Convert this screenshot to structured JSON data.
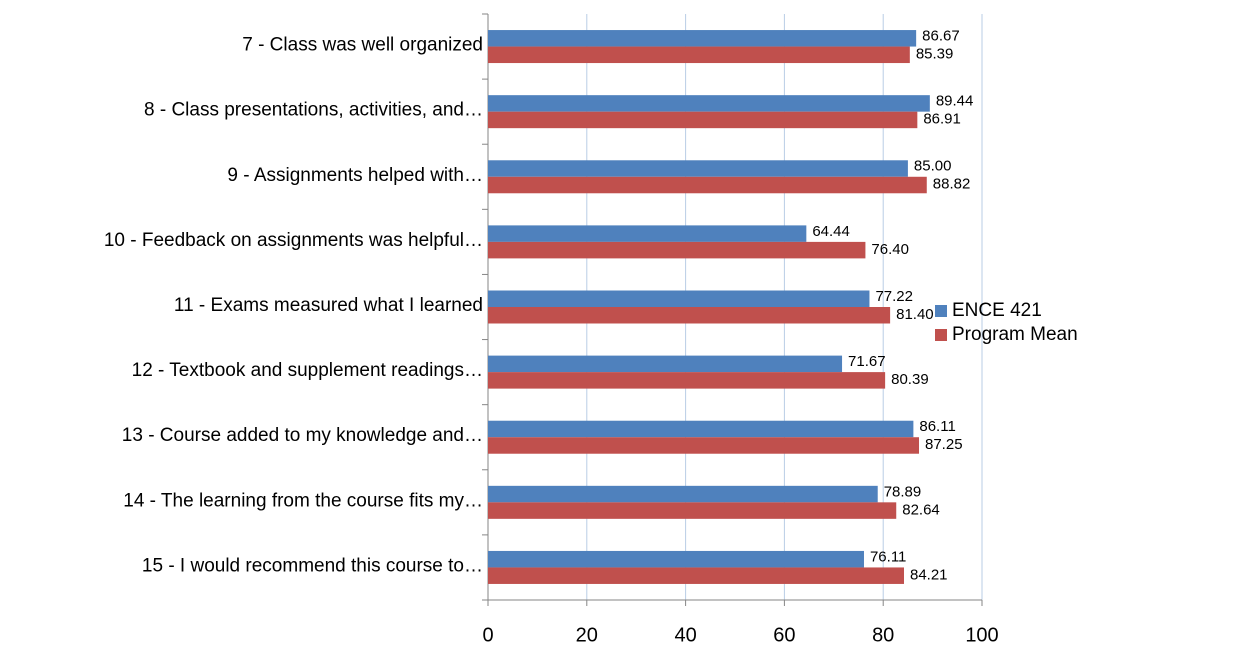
{
  "chart_data": {
    "type": "bar",
    "orientation": "horizontal",
    "categories": [
      "7 - Class was well organized",
      "8 - Class presentations, activities, and…",
      "9 - Assignments helped with…",
      "10 - Feedback on assignments was helpful…",
      "11 - Exams measured what I learned",
      "12 - Textbook and supplement readings…",
      "13 - Course added to my knowledge and…",
      "14 - The learning from the course fits my…",
      "15 - I would recommend this course to…"
    ],
    "series": [
      {
        "name": "ENCE 421",
        "color": "#4f81bd",
        "values": [
          86.67,
          89.44,
          85.0,
          64.44,
          77.22,
          71.67,
          86.11,
          78.89,
          76.11
        ],
        "value_labels": [
          "86.67",
          "89.44",
          "85.00",
          "64.44",
          "77.22",
          "71.67",
          "86.11",
          "78.89",
          "76.11"
        ]
      },
      {
        "name": "Program Mean",
        "color": "#c0504d",
        "values": [
          85.39,
          86.91,
          88.82,
          76.4,
          81.4,
          80.39,
          87.25,
          82.64,
          84.21
        ],
        "value_labels": [
          "85.39",
          "86.91",
          "88.82",
          "76.40",
          "81.40",
          "80.39",
          "87.25",
          "82.64",
          "84.21"
        ]
      }
    ],
    "xlim": [
      0,
      100
    ],
    "xticks": [
      0,
      20,
      40,
      60,
      80,
      100
    ],
    "grid": true,
    "legend": "right"
  }
}
